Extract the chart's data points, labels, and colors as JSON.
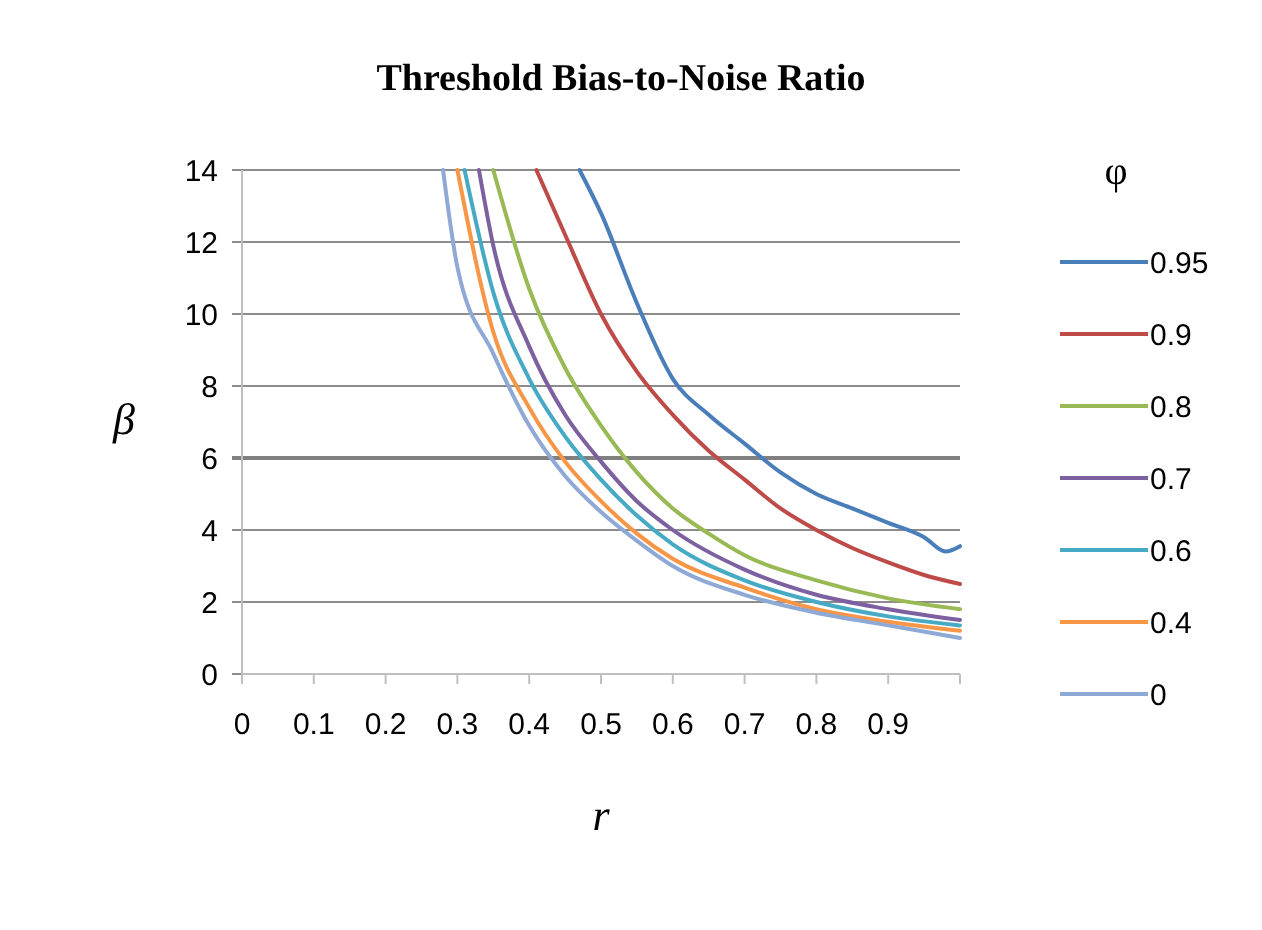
{
  "chart_data": {
    "type": "line",
    "title": "Threshold Bias-to-Noise Ratio",
    "xlabel": "r",
    "ylabel": "β",
    "legend_title": "φ",
    "legend": "right",
    "grid": "y",
    "line_style": "solid",
    "marker": "none",
    "xlim": [
      0,
      1
    ],
    "xticks": [
      0,
      0.1,
      0.2,
      0.3,
      0.4,
      0.5,
      0.6,
      0.7,
      0.8,
      0.9
    ],
    "ylim": [
      0,
      14
    ],
    "yticks": [
      0,
      2,
      4,
      6,
      8,
      10,
      12,
      14
    ],
    "ref_lines": [
      {
        "axis": "y",
        "value": 6,
        "color": "#808080"
      }
    ],
    "series": [
      {
        "name": "0.95",
        "color": "#4a7ebb",
        "x": [
          0.47,
          0.5,
          0.55,
          0.6,
          0.65,
          0.7,
          0.75,
          0.8,
          0.85,
          0.9,
          0.95,
          0.98,
          1
        ],
        "values": [
          14,
          12.8,
          10.3,
          8.2,
          7.2,
          6.4,
          5.6,
          5.0,
          4.6,
          4.2,
          3.8,
          3.4,
          3.55
        ]
      },
      {
        "name": "0.9",
        "color": "#be4b48",
        "x": [
          0.41,
          0.45,
          0.5,
          0.55,
          0.6,
          0.65,
          0.7,
          0.75,
          0.8,
          0.85,
          0.9,
          0.95,
          1
        ],
        "values": [
          14,
          12.2,
          10.0,
          8.4,
          7.2,
          6.2,
          5.4,
          4.6,
          4.0,
          3.5,
          3.1,
          2.75,
          2.5
        ]
      },
      {
        "name": "0.8",
        "color": "#98b954",
        "x": [
          0.35,
          0.4,
          0.45,
          0.5,
          0.55,
          0.6,
          0.65,
          0.7,
          0.8,
          0.9,
          1
        ],
        "values": [
          14,
          10.7,
          8.5,
          6.9,
          5.6,
          4.6,
          3.9,
          3.3,
          2.6,
          2.1,
          1.8
        ]
      },
      {
        "name": "0.7",
        "color": "#7d60a0",
        "x": [
          0.33,
          0.35,
          0.4,
          0.45,
          0.5,
          0.55,
          0.6,
          0.7,
          0.8,
          0.9,
          1
        ],
        "values": [
          14,
          11.9,
          9.1,
          7.2,
          5.9,
          4.8,
          4.0,
          2.9,
          2.2,
          1.8,
          1.5
        ]
      },
      {
        "name": "0.6",
        "color": "#46aac5",
        "x": [
          0.31,
          0.35,
          0.4,
          0.45,
          0.5,
          0.55,
          0.6,
          0.7,
          0.8,
          0.9,
          1
        ],
        "values": [
          14,
          10.6,
          8.2,
          6.6,
          5.4,
          4.4,
          3.6,
          2.6,
          2.0,
          1.6,
          1.35
        ]
      },
      {
        "name": "0.4",
        "color": "#f79646",
        "x": [
          0.3,
          0.35,
          0.4,
          0.45,
          0.5,
          0.55,
          0.6,
          0.7,
          0.8,
          0.9,
          1
        ],
        "values": [
          14,
          9.5,
          7.4,
          5.9,
          4.8,
          3.9,
          3.2,
          2.4,
          1.8,
          1.45,
          1.2
        ]
      },
      {
        "name": "0",
        "color": "#8fa9d6",
        "x": [
          0.28,
          0.3,
          0.35,
          0.4,
          0.45,
          0.5,
          0.55,
          0.6,
          0.7,
          0.8,
          0.9,
          1
        ],
        "values": [
          14,
          11.3,
          8.9,
          6.9,
          5.5,
          4.5,
          3.7,
          3.0,
          2.2,
          1.7,
          1.35,
          1.0
        ]
      }
    ]
  }
}
